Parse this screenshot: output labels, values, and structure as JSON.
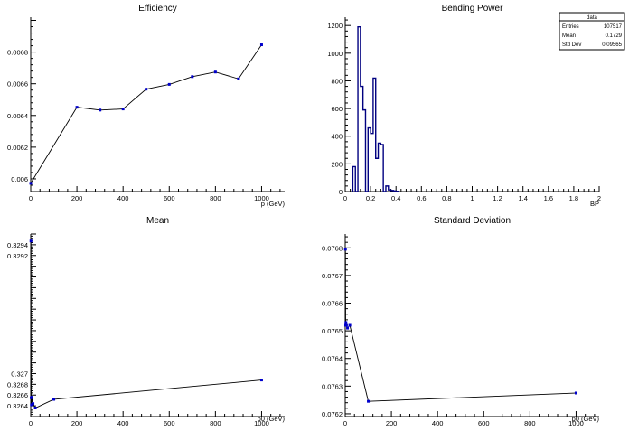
{
  "chart_data": [
    {
      "type": "line",
      "title": "Efficiency",
      "xlabel": "p (GeV)",
      "ylabel": "",
      "xlim": [
        0,
        1100
      ],
      "ylim": [
        0.00592,
        0.00702
      ],
      "xticks": [
        0,
        200,
        400,
        600,
        800,
        1000
      ],
      "xticklabels": [
        "0",
        "200",
        "400",
        "600",
        "800",
        "1000"
      ],
      "yticks": [
        0.006,
        0.0062,
        0.0064,
        0.0066,
        0.0068
      ],
      "yticklabels": [
        "0.006",
        "0.0062",
        "0.0064",
        "0.0066",
        "0.0068"
      ],
      "grid": false,
      "marker_color": "#0000cc",
      "line_color": "#000000",
      "x": [
        0,
        200,
        300,
        400,
        500,
        600,
        700,
        800,
        900,
        1000
      ],
      "y": [
        0.005972,
        0.006452,
        0.006434,
        0.006441,
        0.006566,
        0.006596,
        0.006645,
        0.006674,
        0.006631,
        0.006846
      ]
    },
    {
      "type": "histogram",
      "title": "Bending Power",
      "xlabel": "BP",
      "ylabel": "",
      "xlim": [
        0,
        2
      ],
      "ylim": [
        0,
        1260
      ],
      "xticks": [
        0,
        0.2,
        0.4,
        0.6,
        0.8,
        1,
        1.2,
        1.4,
        1.6,
        1.8,
        2
      ],
      "xticklabels": [
        "0",
        "0.2",
        "0.4",
        "0.6",
        "0.8",
        "1",
        "1.2",
        "1.4",
        "1.6",
        "1.8",
        "2"
      ],
      "yticks": [
        0,
        200,
        400,
        600,
        800,
        1000,
        1200
      ],
      "yticklabels": [
        "0",
        "200",
        "400",
        "600",
        "800",
        "1000",
        "1200"
      ],
      "grid": false,
      "line_color": "#000080",
      "bin_width": 0.02,
      "bin_start": 0.06,
      "values": [
        180,
        0,
        1190,
        760,
        590,
        0,
        460,
        420,
        820,
        240,
        350,
        340,
        0,
        40,
        12,
        8,
        4,
        2
      ],
      "stats": {
        "title": "data",
        "rows": [
          {
            "label": "Entries",
            "value": "107517"
          },
          {
            "label": "Mean",
            "value": "0.1729"
          },
          {
            "label": "Std Dev",
            "value": "0.09565"
          }
        ]
      }
    },
    {
      "type": "line",
      "title": "Mean",
      "xlabel": "p0 (GeV)",
      "ylabel": "",
      "xlim": [
        0,
        1100
      ],
      "ylim": [
        0.3262,
        0.3296
      ],
      "xticks": [
        0,
        200,
        400,
        600,
        800,
        1000
      ],
      "xticklabels": [
        "0",
        "200",
        "400",
        "600",
        "800",
        "1000"
      ],
      "yticks": [
        0.3264,
        0.3266,
        0.3268,
        0.327,
        0.3272,
        0.3274,
        0.3276,
        0.3278,
        0.328,
        0.3282,
        0.3284,
        0.3286,
        0.3288,
        0.329,
        0.3292,
        0.3294
      ],
      "yticklabels": [
        "0.3264",
        "0.3266",
        "0.3268",
        "0.327",
        "",
        "",
        "",
        "",
        "",
        "",
        "",
        "",
        "",
        "",
        "0.3292",
        "0.3294"
      ],
      "grid": false,
      "marker_color": "#0000cc",
      "line_color": "#000000",
      "x": [
        1,
        2,
        3,
        5,
        10,
        20,
        100,
        1000
      ],
      "y": [
        0.32947,
        0.32655,
        0.32642,
        0.32656,
        0.32644,
        0.32636,
        0.32652,
        0.32688
      ]
    },
    {
      "type": "line",
      "title": "Standard Deviation",
      "xlabel": "p0 (GeV)",
      "ylabel": "",
      "xlim": [
        0,
        1100
      ],
      "ylim": [
        0.07619,
        0.07685
      ],
      "xticks": [
        0,
        200,
        400,
        600,
        800,
        1000
      ],
      "xticklabels": [
        "0",
        "200",
        "400",
        "600",
        "800",
        "1000"
      ],
      "yticks": [
        0.0762,
        0.0763,
        0.0764,
        0.0765,
        0.0766,
        0.0767,
        0.0768
      ],
      "yticklabels": [
        "0.0762",
        "0.0763",
        "0.0764",
        "0.0765",
        "0.0766",
        "0.0767",
        "0.0768"
      ],
      "grid": false,
      "marker_color": "#0000cc",
      "line_color": "#000000",
      "x": [
        1,
        2,
        3,
        5,
        10,
        20,
        100,
        1000
      ],
      "y": [
        0.076795,
        0.07652,
        0.07653,
        0.07652,
        0.07651,
        0.07652,
        0.076245,
        0.076275
      ]
    }
  ]
}
